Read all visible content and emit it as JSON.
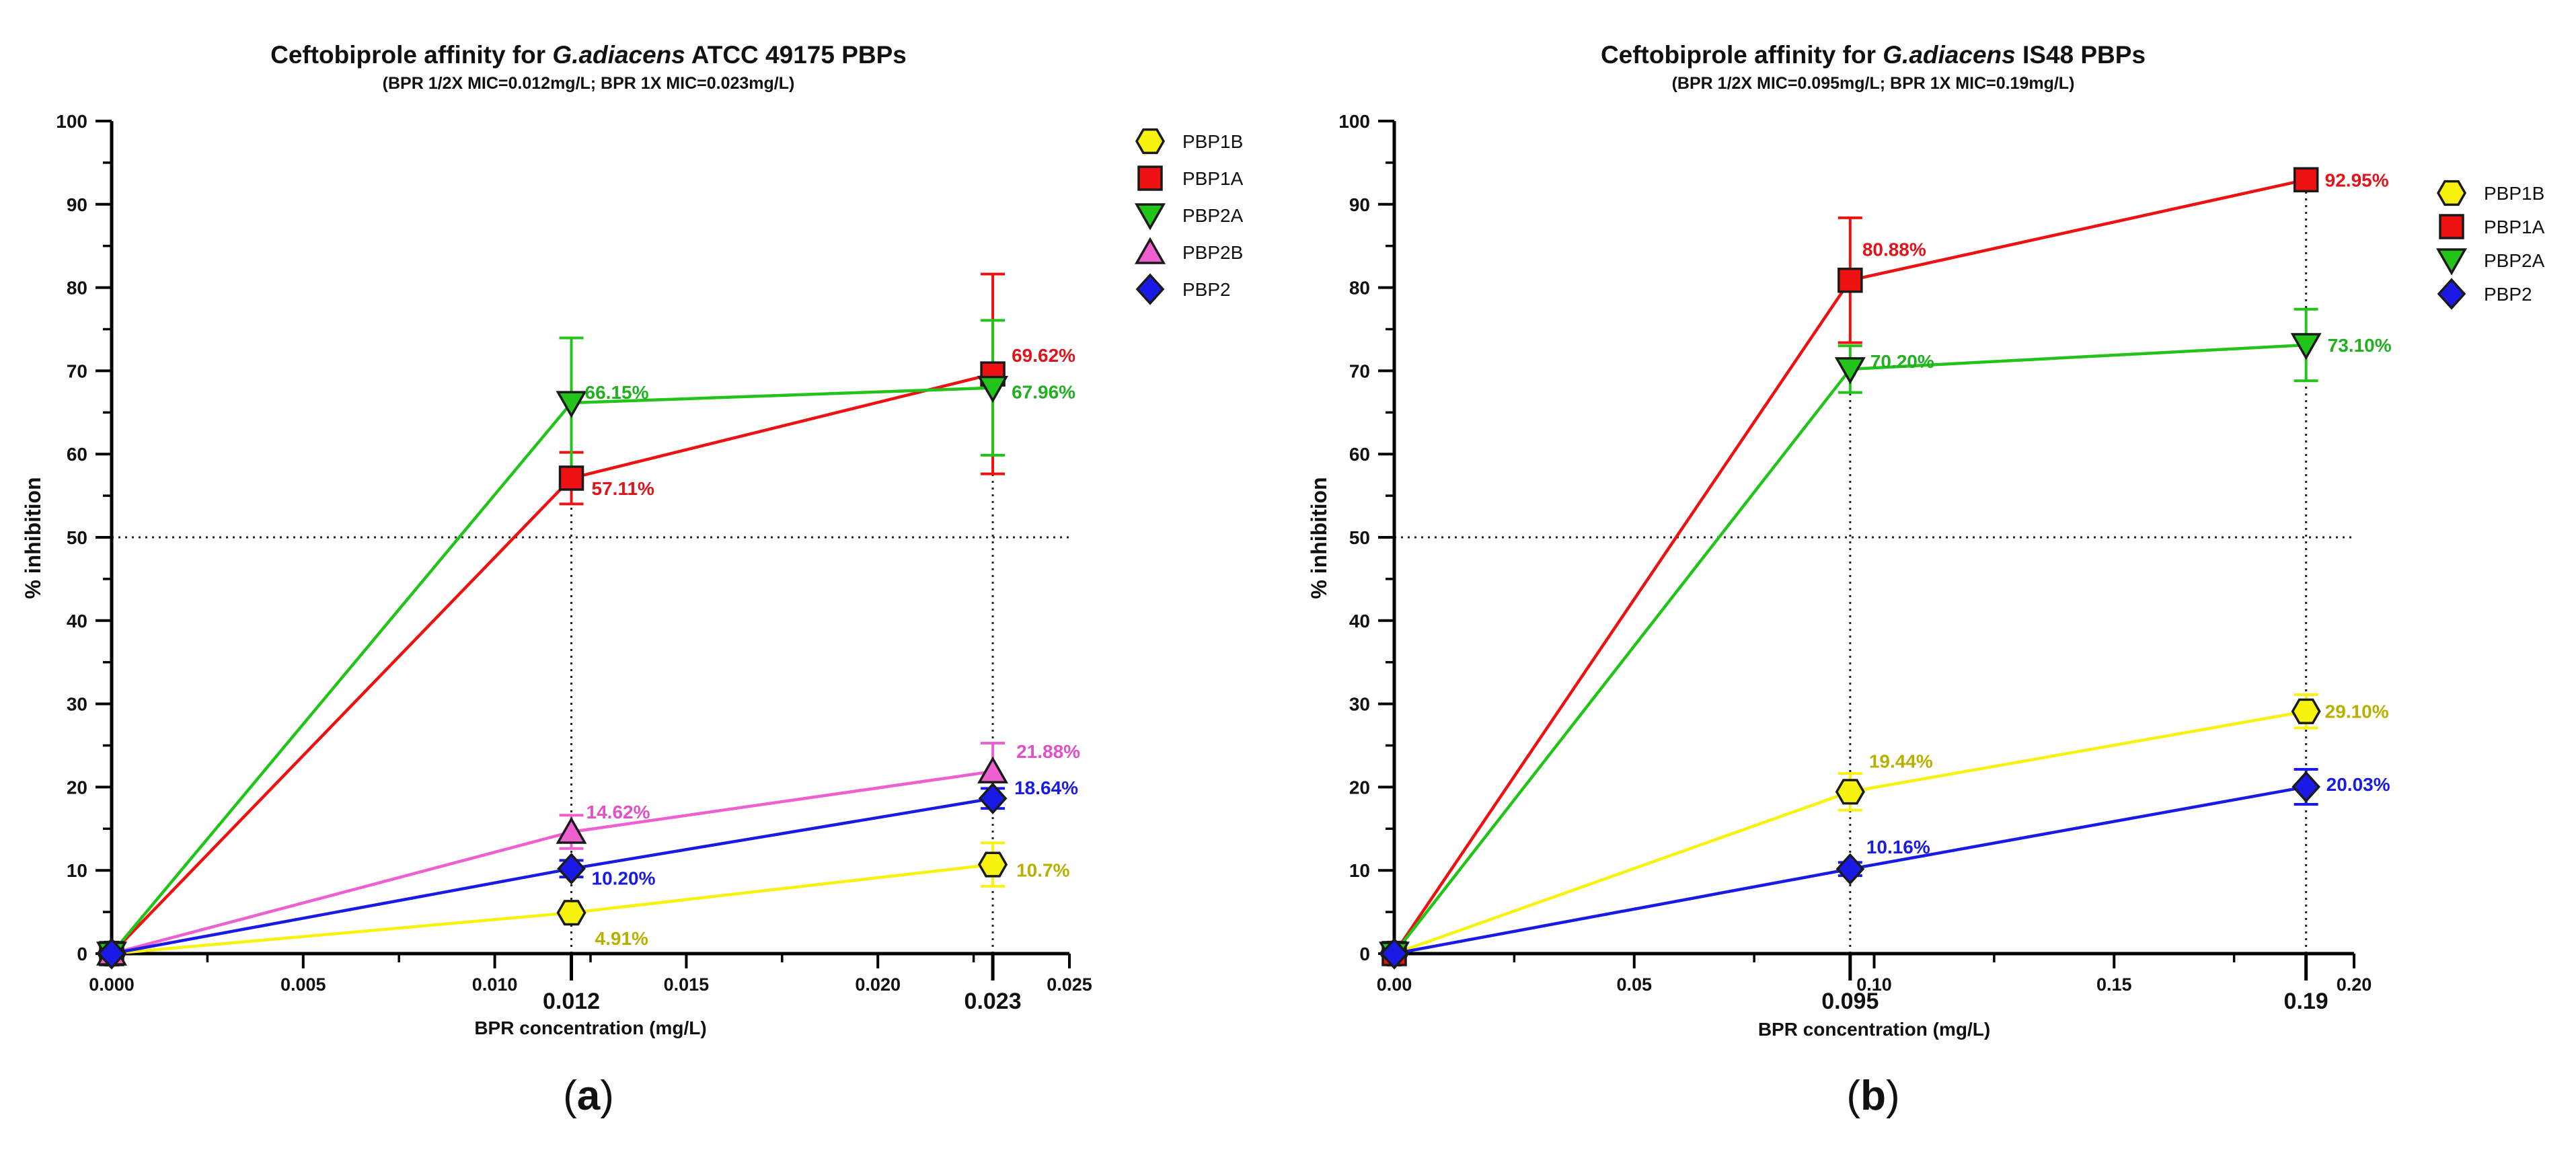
{
  "chart_data": [
    {
      "type": "line",
      "panel_label": "(a)",
      "title_pre": "Ceftobiprole affinity for ",
      "title_italic": "G.adiacens",
      "title_post": " ATCC 49175 PBPs",
      "subtitle": "(BPR 1/2X MIC=0.012mg/L; BPR 1X MIC=0.023mg/L)",
      "xlabel": "BPR concentration (mg/L)",
      "ylabel": "% inhibition",
      "xlim": [
        0,
        0.025
      ],
      "ylim": [
        0,
        100
      ],
      "x_ticks": [
        0,
        0.005,
        0.01,
        0.015,
        0.02,
        0.025
      ],
      "x_tick_labels": [
        "0.000",
        "0.005",
        "0.010",
        "0.015",
        "0.020",
        "0.025"
      ],
      "x_highlight": [
        0.012,
        0.023
      ],
      "x_highlight_labels": [
        "0.012",
        "0.023"
      ],
      "y_ticks": [
        0,
        10,
        20,
        30,
        40,
        50,
        60,
        70,
        80,
        90,
        100
      ],
      "y_tick_labels": [
        "0",
        "10",
        "20",
        "30",
        "40",
        "50",
        "60",
        "70",
        "80",
        "90",
        "100"
      ],
      "threshold": 50,
      "legend_position": "top-right",
      "series": [
        {
          "name": "PBP1B",
          "marker": "hexagon",
          "color": "#f7f20e",
          "label_color": "#b8b000",
          "x": [
            0,
            0.012,
            0.023
          ],
          "y": [
            0,
            4.91,
            10.7
          ],
          "err": [
            0,
            0,
            2.6
          ],
          "labels": [
            "",
            "4.91%",
            "10.7%"
          ]
        },
        {
          "name": "PBP1A",
          "marker": "square",
          "color": "#ee1111",
          "label_color": "#e0141a",
          "x": [
            0,
            0.012,
            0.023
          ],
          "y": [
            0,
            57.11,
            69.62
          ],
          "err": [
            0,
            3.1,
            12.0
          ],
          "labels": [
            "",
            "57.11%",
            "69.62%"
          ]
        },
        {
          "name": "PBP2A",
          "marker": "triangle-down",
          "color": "#22c41a",
          "label_color": "#20b020",
          "x": [
            0,
            0.012,
            0.023
          ],
          "y": [
            0,
            66.15,
            67.96
          ],
          "err": [
            0,
            7.8,
            8.1
          ],
          "labels": [
            "",
            "66.15%",
            "67.96%"
          ]
        },
        {
          "name": "PBP2B",
          "marker": "triangle-up",
          "color": "#ee5fd0",
          "label_color": "#e050c8",
          "x": [
            0,
            0.012,
            0.023
          ],
          "y": [
            0,
            14.62,
            21.88
          ],
          "err": [
            0,
            2.0,
            3.4
          ],
          "labels": [
            "",
            "14.62%",
            "21.88%"
          ]
        },
        {
          "name": "PBP2",
          "marker": "diamond",
          "color": "#1a1ae6",
          "label_color": "#1a1ae6",
          "x": [
            0,
            0.012,
            0.023
          ],
          "y": [
            0,
            10.2,
            18.64
          ],
          "err": [
            0,
            1.0,
            1.2
          ],
          "labels": [
            "",
            "10.20%",
            "18.64%"
          ]
        }
      ]
    },
    {
      "type": "line",
      "panel_label": "(b)",
      "title_pre": "Ceftobiprole affinity for ",
      "title_italic": "G.adiacens",
      "title_post": " IS48 PBPs",
      "subtitle": "(BPR 1/2X MIC=0.095mg/L; BPR 1X MIC=0.19mg/L)",
      "xlabel": "BPR concentration (mg/L)",
      "ylabel": "% inhibition",
      "xlim": [
        0,
        0.2
      ],
      "ylim": [
        0,
        100
      ],
      "x_ticks": [
        0,
        0.05,
        0.1,
        0.15,
        0.2
      ],
      "x_tick_labels": [
        "0.00",
        "0.05",
        "0.10",
        "0.15",
        "0.20"
      ],
      "x_highlight": [
        0.095,
        0.19
      ],
      "x_highlight_labels": [
        "0.095",
        "0.19"
      ],
      "y_ticks": [
        0,
        10,
        20,
        30,
        40,
        50,
        60,
        70,
        80,
        90,
        100
      ],
      "y_tick_labels": [
        "0",
        "10",
        "20",
        "30",
        "40",
        "50",
        "60",
        "70",
        "80",
        "90",
        "100"
      ],
      "threshold": 50,
      "legend_position": "top-right",
      "series": [
        {
          "name": "PBP1B",
          "marker": "hexagon",
          "color": "#f7f20e",
          "label_color": "#b8b000",
          "x": [
            0,
            0.095,
            0.19
          ],
          "y": [
            0,
            19.44,
            29.1
          ],
          "err": [
            0,
            2.2,
            2.0
          ],
          "labels": [
            "",
            "19.44%",
            "29.10%"
          ]
        },
        {
          "name": "PBP1A",
          "marker": "square",
          "color": "#ee1111",
          "label_color": "#e0141a",
          "x": [
            0,
            0.095,
            0.19
          ],
          "y": [
            0,
            80.88,
            92.95
          ],
          "err": [
            0,
            7.5,
            0.6
          ],
          "labels": [
            "",
            "80.88%",
            "92.95%"
          ]
        },
        {
          "name": "PBP2A",
          "marker": "triangle-down",
          "color": "#22c41a",
          "label_color": "#20b020",
          "x": [
            0,
            0.095,
            0.19
          ],
          "y": [
            0,
            70.2,
            73.1
          ],
          "err": [
            0,
            2.8,
            4.3
          ],
          "labels": [
            "",
            "70.20%",
            "73.10%"
          ]
        },
        {
          "name": "PBP2",
          "marker": "diamond",
          "color": "#1a1ae6",
          "label_color": "#1a1ae6",
          "x": [
            0,
            0.095,
            0.19
          ],
          "y": [
            0,
            10.16,
            20.03
          ],
          "err": [
            0,
            0.8,
            2.1
          ],
          "labels": [
            "",
            "10.16%",
            "20.03%"
          ]
        }
      ]
    }
  ]
}
